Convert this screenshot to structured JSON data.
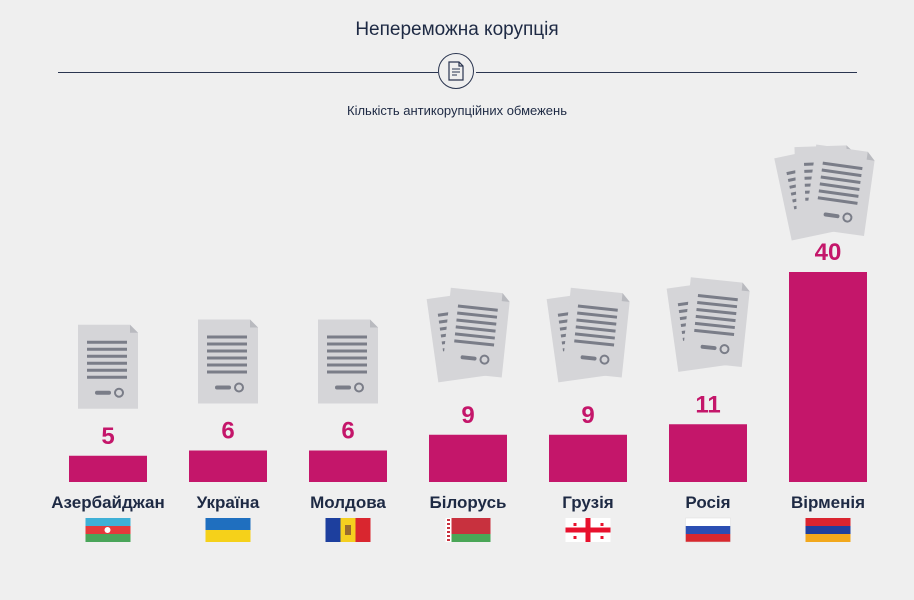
{
  "title": "Непереможна корупція",
  "subtitle": "Кількість антикорупційних обмежень",
  "colors": {
    "bar": "#c4166a",
    "value_text": "#c4166a",
    "label_text": "#1e2a44",
    "document": "#d5d5d8",
    "document_lines": "#7a7d88"
  },
  "chart_data": {
    "type": "bar",
    "title": "Непереможна корупція",
    "subtitle": "Кількість антикорупційних обмежень",
    "categories": [
      "Азербайджан",
      "Україна",
      "Молдова",
      "Білорусь",
      "Грузія",
      "Росія",
      "Вірменія"
    ],
    "values": [
      5,
      6,
      6,
      9,
      9,
      11,
      40
    ],
    "data_labels": [
      "5",
      "6",
      "6",
      "9",
      "9",
      "11",
      "40"
    ],
    "document_icons": [
      1,
      1,
      1,
      2,
      2,
      2,
      3
    ],
    "flags": [
      "azerbaijan-flag",
      "ukraine-flag",
      "moldova-flag",
      "belarus-flag",
      "georgia-flag",
      "russia-flag",
      "armenia-flag"
    ],
    "xlabel": "",
    "ylabel": "",
    "grid": false,
    "legend": "none"
  }
}
